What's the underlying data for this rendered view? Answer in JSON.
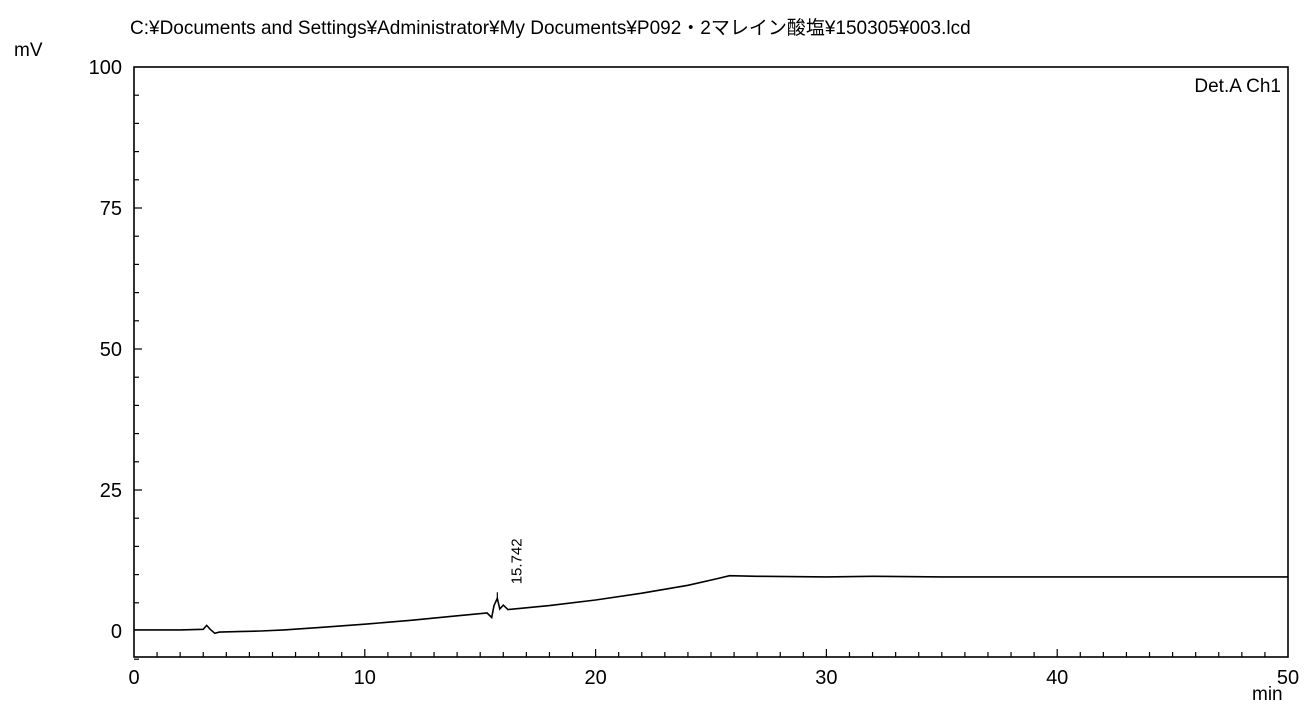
{
  "header": {
    "file_path": "C:¥Documents and Settings¥Administrator¥My Documents¥P092・2マレイン酸塩¥150305¥003.lcd"
  },
  "chart_data": {
    "type": "line",
    "title": "C:¥Documents and Settings¥Administrator¥My Documents¥P092・2マレイン酸塩¥150305¥003.lcd",
    "ylabel": "mV",
    "xlabel": "min",
    "channel_label": "Det.A Ch1",
    "xlim": [
      0,
      50
    ],
    "ylim": [
      -5,
      100
    ],
    "x_ticks": [
      0,
      10,
      20,
      30,
      40,
      50
    ],
    "y_ticks": [
      0,
      25,
      50,
      75,
      100
    ],
    "grid": false,
    "series": [
      {
        "points": [
          [
            0,
            0.2
          ],
          [
            1,
            0.2
          ],
          [
            2,
            0.2
          ],
          [
            3.0,
            0.3
          ],
          [
            3.15,
            1.0
          ],
          [
            3.3,
            0.3
          ],
          [
            3.5,
            -0.4
          ],
          [
            3.7,
            -0.2
          ],
          [
            4.5,
            -0.1
          ],
          [
            5.5,
            0.0
          ],
          [
            6.5,
            0.2
          ],
          [
            8,
            0.6
          ],
          [
            10,
            1.2
          ],
          [
            12,
            1.9
          ],
          [
            14,
            2.7
          ],
          [
            15.3,
            3.2
          ],
          [
            15.5,
            2.4
          ],
          [
            15.6,
            4.5
          ],
          [
            15.74,
            5.8
          ],
          [
            15.85,
            3.9
          ],
          [
            16.0,
            4.6
          ],
          [
            16.2,
            3.8
          ],
          [
            18,
            4.5
          ],
          [
            20,
            5.5
          ],
          [
            22,
            6.7
          ],
          [
            24,
            8.1
          ],
          [
            25.3,
            9.3
          ],
          [
            25.8,
            9.8
          ],
          [
            27,
            9.7
          ],
          [
            30,
            9.6
          ],
          [
            32,
            9.7
          ],
          [
            35,
            9.6
          ],
          [
            40,
            9.6
          ],
          [
            45,
            9.6
          ],
          [
            50,
            9.6
          ]
        ]
      }
    ],
    "peaks": [
      {
        "label": "15.742",
        "x": 15.742,
        "y": 5.8
      }
    ]
  }
}
